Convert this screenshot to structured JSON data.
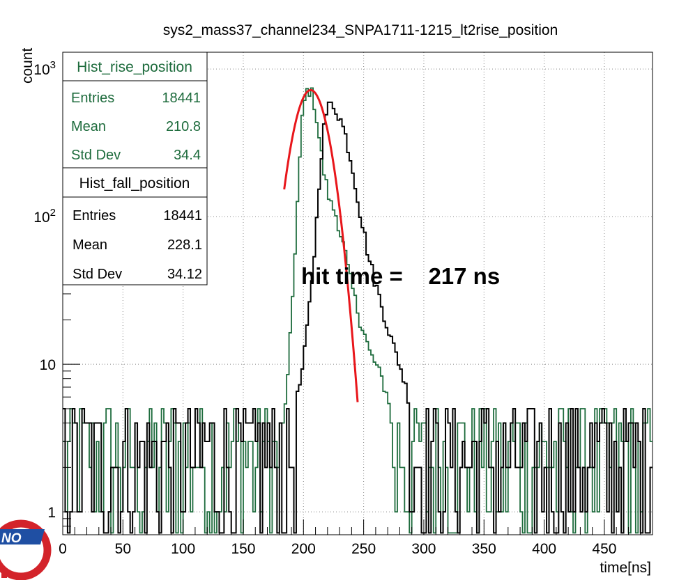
{
  "chart_data": {
    "type": "line",
    "title": "sys2_mass37_channel234_SNPA1711-1215_lt2rise_position",
    "xlabel": "time[ns]",
    "ylabel": "count",
    "xlim": [
      0,
      490
    ],
    "ylim": [
      0.7,
      1300
    ],
    "yscale": "log",
    "grid": true,
    "x_ticks": [
      "0",
      "50",
      "100",
      "150",
      "200",
      "250",
      "300",
      "350",
      "400",
      "450"
    ],
    "y_ticks": [
      "1",
      "10",
      "10^2",
      "10^3"
    ],
    "annotation": "hit time =    217 ns",
    "colors": {
      "rise": "#1d6b3c",
      "fall": "#000000",
      "fit": "#e8161b"
    },
    "stats_boxes": [
      {
        "title": "Hist_rise_position",
        "color": "#1d6b3c",
        "rows": [
          {
            "label": "Entries",
            "value": "18441"
          },
          {
            "label": "Mean",
            "value": "210.8"
          },
          {
            "label": "Std Dev",
            "value": "34.4"
          }
        ]
      },
      {
        "title": "Hist_fall_position",
        "color": "#000000",
        "rows": [
          {
            "label": "Entries",
            "value": "18441"
          },
          {
            "label": "Mean",
            "value": "228.1"
          },
          {
            "label": "Std Dev",
            "value": "34.12"
          }
        ]
      }
    ],
    "series": [
      {
        "kind": "histogram-envelope",
        "hist": "rise",
        "x": [
          0,
          150,
          180,
          183,
          187,
          190,
          193,
          196,
          199,
          202,
          205,
          208,
          211,
          214,
          217,
          220,
          223,
          226,
          229,
          232,
          235,
          238,
          241,
          244,
          247,
          250,
          255,
          260,
          265,
          270,
          275,
          280,
          285,
          290,
          300,
          490
        ],
        "y": [
          3,
          3,
          3,
          4,
          8,
          20,
          60,
          180,
          450,
          700,
          720,
          660,
          460,
          300,
          200,
          150,
          120,
          110,
          90,
          70,
          55,
          40,
          32,
          25,
          20,
          17,
          12,
          10,
          8,
          6,
          5,
          4,
          3,
          3,
          3,
          3
        ]
      },
      {
        "kind": "histogram-envelope",
        "hist": "fall",
        "x": [
          0,
          180,
          185,
          190,
          195,
          200,
          205,
          210,
          213,
          216,
          219,
          222,
          225,
          228,
          231,
          234,
          237,
          240,
          243,
          246,
          250,
          255,
          260,
          265,
          270,
          275,
          280,
          285,
          290,
          300,
          310,
          490
        ],
        "y": [
          3,
          3,
          3,
          4,
          6,
          10,
          25,
          70,
          170,
          350,
          500,
          580,
          570,
          520,
          450,
          380,
          300,
          230,
          170,
          120,
          80,
          50,
          35,
          25,
          18,
          13,
          10,
          7,
          5,
          4,
          3,
          3
        ]
      },
      {
        "kind": "gaussian-fit",
        "x_range": [
          184,
          245
        ],
        "amplitude": 720,
        "mean": 206,
        "sigma": 12.5
      }
    ]
  }
}
